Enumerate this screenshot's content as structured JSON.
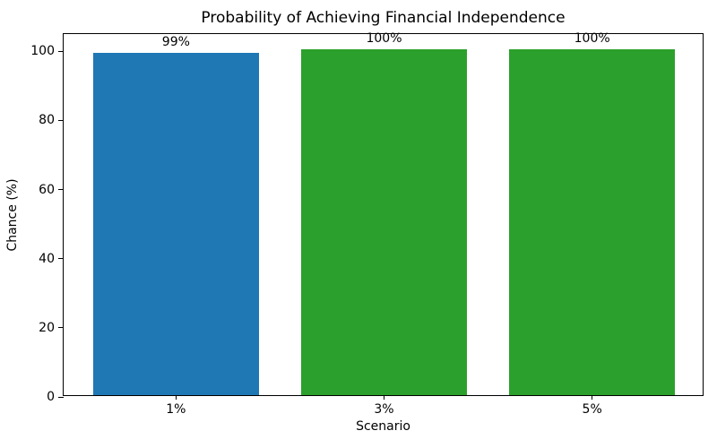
{
  "chart_data": {
    "type": "bar",
    "title": "Probability of Achieving Financial Independence",
    "xlabel": "Scenario",
    "ylabel": "Chance (%)",
    "categories": [
      "1%",
      "3%",
      "5%"
    ],
    "values": [
      99,
      100,
      100
    ],
    "bar_labels": [
      "99%",
      "100%",
      "100%"
    ],
    "bar_colors": [
      "#1f77b4",
      "#2ca02c",
      "#2ca02c"
    ],
    "ylim": [
      0,
      105
    ],
    "yticks": [
      0,
      20,
      40,
      60,
      80,
      100
    ],
    "bar_width_fraction": 0.8,
    "x_margin": 0.54,
    "grid": false,
    "legend": null,
    "background_color": "#ffffff",
    "spine_color": "#000000"
  }
}
